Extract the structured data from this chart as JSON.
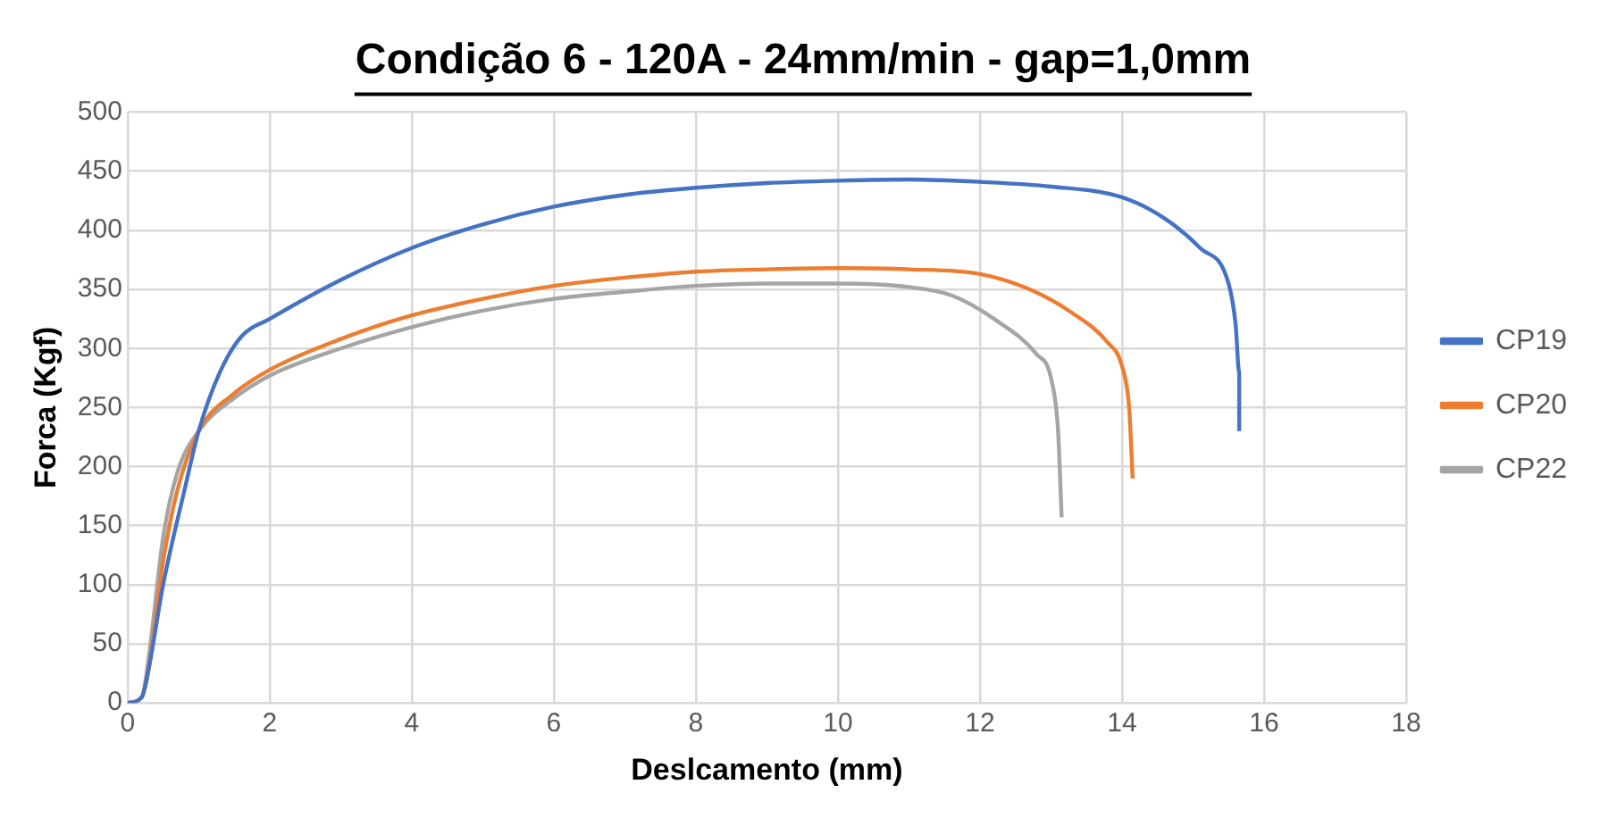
{
  "chart_data": {
    "type": "line",
    "title": "Condição 6 - 120A - 24mm/min - gap=1,0mm",
    "xlabel": "Deslcamento (mm)",
    "ylabel": "Forca (Kgf)",
    "xlim": [
      0,
      18
    ],
    "xticks": [
      0,
      2,
      4,
      6,
      8,
      10,
      12,
      14,
      16,
      18
    ],
    "ylim": [
      0,
      500
    ],
    "yticks": [
      0,
      50,
      100,
      150,
      200,
      250,
      300,
      350,
      400,
      450,
      500
    ],
    "grid": true,
    "legend": "right",
    "marker": "none",
    "line_style": "solid",
    "series": [
      {
        "name": "CP19",
        "color": "#4472c4",
        "x": [
          0,
          0.2,
          0.3,
          0.5,
          0.8,
          1.0,
          1.3,
          1.6,
          2,
          3,
          4,
          5,
          6,
          7,
          8,
          9,
          10,
          11,
          12,
          13,
          14,
          14.6,
          15.1,
          15.5,
          15.6,
          15.65,
          15.65
        ],
        "values": [
          0,
          5,
          30,
          100,
          180,
          230,
          280,
          310,
          325,
          358,
          385,
          405,
          420,
          430,
          436,
          440,
          442,
          443,
          441,
          437,
          428,
          410,
          385,
          355,
          320,
          280,
          230
        ]
      },
      {
        "name": "CP20",
        "color": "#ed7d31",
        "x": [
          0,
          0.2,
          0.3,
          0.5,
          0.7,
          1,
          1.5,
          2,
          3,
          4,
          5,
          6,
          7,
          8,
          9,
          10,
          11,
          12,
          12.7,
          13.3,
          13.8,
          14.0,
          14.1,
          14.15
        ],
        "values": [
          0,
          5,
          30,
          120,
          180,
          230,
          262,
          282,
          308,
          328,
          342,
          353,
          360,
          365,
          367,
          368,
          367,
          363,
          350,
          330,
          305,
          285,
          250,
          190
        ]
      },
      {
        "name": "CP22",
        "color": "#a5a5a5",
        "x": [
          0,
          0.2,
          0.3,
          0.5,
          0.7,
          1,
          1.5,
          2,
          3,
          4,
          5,
          6,
          7,
          8,
          9,
          10,
          11,
          11.6,
          12.2,
          12.8,
          13.0,
          13.1,
          13.15
        ],
        "values": [
          0,
          5,
          40,
          140,
          195,
          230,
          258,
          277,
          300,
          318,
          332,
          342,
          348,
          353,
          355,
          355,
          352,
          345,
          325,
          295,
          275,
          230,
          157
        ]
      }
    ]
  }
}
